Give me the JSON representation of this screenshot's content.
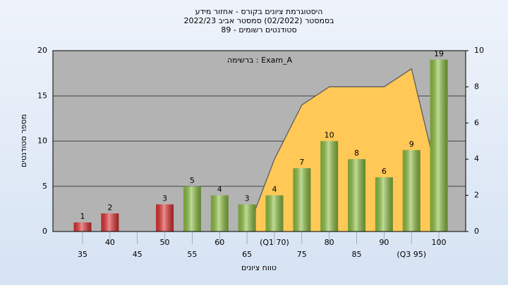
{
  "chart_data": {
    "type": "bar",
    "title": [
      "היסטוגרמת ציונים בקורס - אחזור מידע",
      "בסמסטר (02/2022) סמסטר אביב 2022/23",
      "סטודנטים רשומים - 89"
    ],
    "annotation": "ברשימה : Exam_A",
    "x_label": "טווח ציונים",
    "y_label": "מספר סטודנטים",
    "categories": [
      "35",
      "40",
      "45",
      "50",
      "55",
      "60",
      "65",
      "(Q1 70)",
      "75",
      "80",
      "85",
      "90",
      "(Q3 95)",
      "100"
    ],
    "series": [
      {
        "type": "area",
        "axis": "y2",
        "color": "#ffc857",
        "values": [
          null,
          null,
          null,
          null,
          null,
          null,
          0,
          4,
          7,
          8,
          8,
          8,
          9,
          2.7
        ]
      },
      {
        "type": "bar",
        "values": [
          1,
          2,
          0,
          3,
          5,
          4,
          3,
          4,
          7,
          10,
          8,
          6,
          9,
          19
        ],
        "value_labels": [
          "1",
          "2",
          null,
          "3",
          "5",
          "4",
          "3",
          "4",
          "7",
          "10",
          "8",
          "6",
          "9",
          "19"
        ],
        "colors": [
          "#e03030",
          "#e03030",
          "#e03030",
          "#e03030",
          "#8cc040",
          "#8cc040",
          "#8cc040",
          "#8cc040",
          "#8cc040",
          "#8cc040",
          "#8cc040",
          "#8cc040",
          "#8cc040",
          "#8cc040"
        ]
      }
    ],
    "ylim": [
      0,
      20
    ],
    "yticks": [
      0,
      5,
      10,
      15,
      20
    ],
    "y2lim": [
      0,
      10
    ],
    "y2ticks": [
      0,
      2,
      4,
      6,
      8,
      10
    ],
    "grid": true
  }
}
